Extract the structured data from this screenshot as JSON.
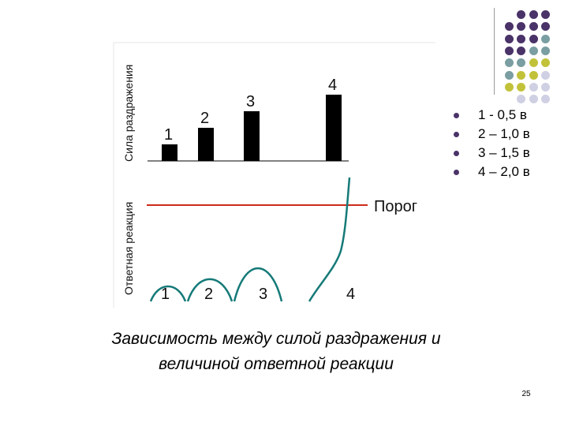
{
  "colors": {
    "purple": "#4a3368",
    "teal": "#7a9ea1",
    "olive": "#c2c23a",
    "lavender": "#cfd0e3",
    "threshold": "#cc2a18",
    "response_curve": "#157a78",
    "bar": "#000000"
  },
  "decoration": {
    "rows": [
      [
        "purple",
        "purple",
        "purple"
      ],
      [
        "purple",
        "purple",
        "purple",
        "purple"
      ],
      [
        "purple",
        "purple",
        "purple",
        "teal"
      ],
      [
        "purple",
        "purple",
        "teal",
        "teal"
      ],
      [
        "teal",
        "teal",
        "olive",
        "olive"
      ],
      [
        "teal",
        "olive",
        "olive",
        "lavender"
      ],
      [
        "olive",
        "olive",
        "lavender",
        "lavender"
      ],
      [
        "lavender",
        "lavender",
        "lavender"
      ]
    ]
  },
  "figure": {
    "stimulus_axis_label": "Сила раздражения",
    "response_axis_label": "Ответная реакция",
    "threshold_label": "Порог"
  },
  "chart_data": {
    "type": "bar",
    "categories": [
      "1",
      "2",
      "3",
      "4"
    ],
    "stimulus_values": [
      0.5,
      1.0,
      1.5,
      2.0
    ],
    "stimulus_unit": "в",
    "threshold": 1.9,
    "response_values": [
      0.35,
      0.55,
      0.85,
      2.0
    ],
    "response_labels": [
      "1",
      "2",
      "3",
      "4"
    ]
  },
  "legend": {
    "items": [
      "1 - 0,5 в",
      "2 – 1,0 в",
      "3 – 1,5 в",
      "4 – 2,0 в"
    ]
  },
  "caption": {
    "line1": "Зависимость между силой раздражения и",
    "line2": "величиной ответной   реакции"
  },
  "page_number": "25"
}
